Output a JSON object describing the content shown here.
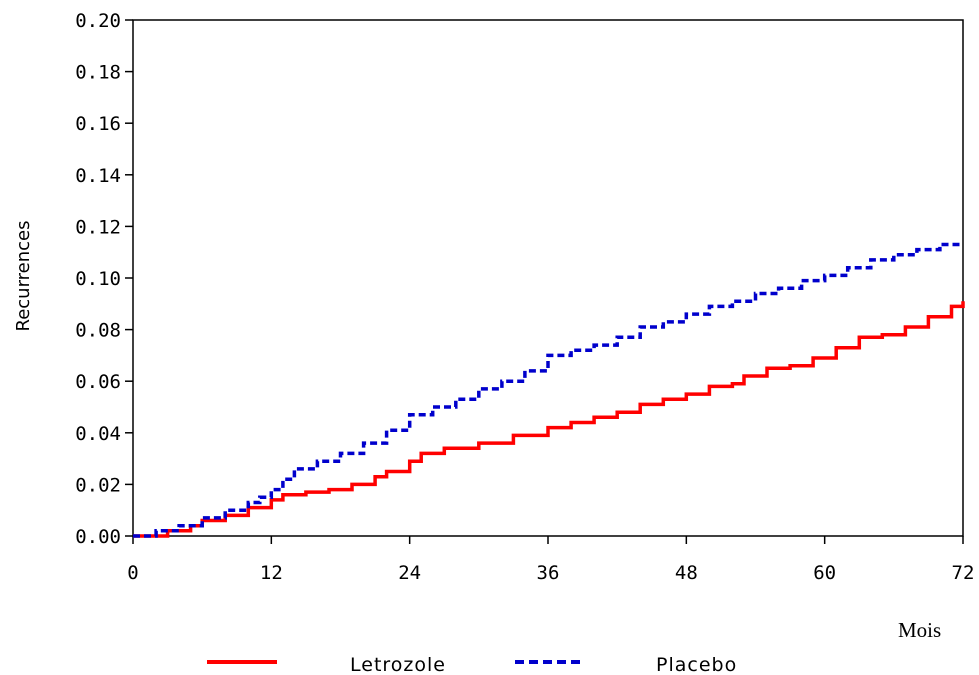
{
  "chart_data": {
    "type": "line",
    "title": "",
    "xlabel": "Mois",
    "ylabel": "Recurrences",
    "xlim": [
      0,
      72
    ],
    "ylim": [
      0,
      0.2
    ],
    "x_ticks": [
      "0",
      "12",
      "24",
      "36",
      "48",
      "60",
      "72"
    ],
    "y_ticks": [
      "0.00",
      "0.02",
      "0.04",
      "0.06",
      "0.08",
      "0.10",
      "0.12",
      "0.14",
      "0.16",
      "0.18",
      "0.20"
    ],
    "grid": false,
    "legend_position": "bottom",
    "series": [
      {
        "name": "Letrozole",
        "color": "#ff0000",
        "style": "solid",
        "x": [
          0,
          3,
          5,
          6,
          8,
          10,
          12,
          13,
          15,
          17,
          19,
          21,
          22,
          24,
          25,
          27,
          30,
          33,
          36,
          38,
          40,
          42,
          44,
          46,
          48,
          50,
          52,
          53,
          55,
          57,
          59,
          61,
          63,
          65,
          67,
          69,
          71,
          72
        ],
        "y": [
          0.0,
          0.002,
          0.004,
          0.006,
          0.008,
          0.011,
          0.014,
          0.016,
          0.017,
          0.018,
          0.02,
          0.023,
          0.025,
          0.029,
          0.032,
          0.034,
          0.036,
          0.039,
          0.042,
          0.044,
          0.046,
          0.048,
          0.051,
          0.053,
          0.055,
          0.058,
          0.059,
          0.062,
          0.065,
          0.066,
          0.069,
          0.073,
          0.077,
          0.078,
          0.081,
          0.085,
          0.089,
          0.091
        ]
      },
      {
        "name": "Placebo",
        "color": "#0000cc",
        "style": "dashed",
        "x": [
          0,
          2,
          4,
          6,
          8,
          10,
          11,
          12,
          13,
          14,
          16,
          18,
          20,
          22,
          24,
          26,
          28,
          30,
          32,
          34,
          36,
          38,
          40,
          42,
          44,
          46,
          48,
          50,
          52,
          54,
          56,
          58,
          60,
          62,
          64,
          66,
          68,
          70,
          72
        ],
        "y": [
          0.0,
          0.002,
          0.004,
          0.007,
          0.01,
          0.013,
          0.015,
          0.018,
          0.022,
          0.026,
          0.029,
          0.032,
          0.036,
          0.041,
          0.047,
          0.05,
          0.053,
          0.057,
          0.06,
          0.064,
          0.07,
          0.072,
          0.074,
          0.077,
          0.081,
          0.083,
          0.086,
          0.089,
          0.091,
          0.094,
          0.096,
          0.099,
          0.101,
          0.104,
          0.107,
          0.109,
          0.111,
          0.113,
          0.113
        ]
      }
    ]
  }
}
